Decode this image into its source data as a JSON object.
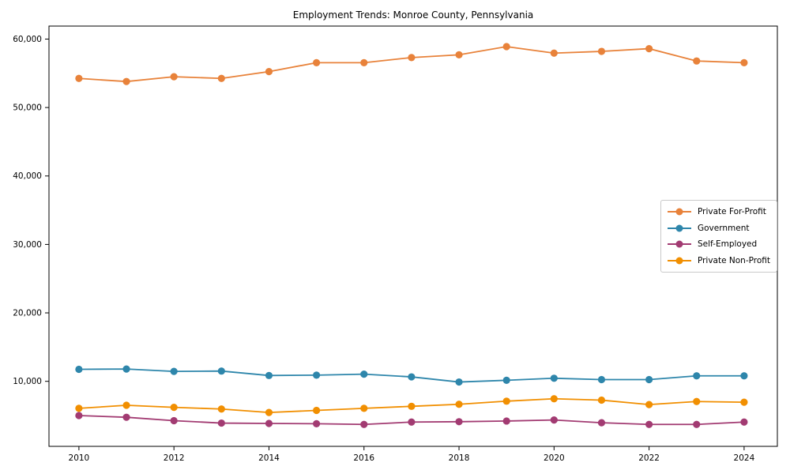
{
  "chart_data": {
    "type": "line",
    "title": "Employment Trends: Monroe County, Pennsylvania",
    "xlabel": "",
    "ylabel": "",
    "x": [
      2010,
      2011,
      2012,
      2013,
      2014,
      2015,
      2016,
      2017,
      2018,
      2019,
      2020,
      2021,
      2022,
      2023,
      2024
    ],
    "series": [
      {
        "name": "Private For-Profit",
        "color": "#E8823A",
        "values": [
          54250,
          53800,
          54500,
          54250,
          55250,
          56550,
          56550,
          57300,
          57700,
          58900,
          57950,
          58200,
          58600,
          56800,
          56550
        ]
      },
      {
        "name": "Government",
        "color": "#2E86AB",
        "values": [
          11750,
          11800,
          11450,
          11500,
          10850,
          10900,
          11050,
          10650,
          9900,
          10150,
          10450,
          10250,
          10250,
          10800,
          10800
        ]
      },
      {
        "name": "Self-Employed",
        "color": "#A23B72",
        "values": [
          5000,
          4750,
          4250,
          3900,
          3850,
          3800,
          3700,
          4050,
          4100,
          4200,
          4350,
          3950,
          3700,
          3700,
          4050
        ]
      },
      {
        "name": "Private Non-Profit",
        "color": "#F18F01",
        "values": [
          6050,
          6500,
          6200,
          5950,
          5450,
          5750,
          6050,
          6350,
          6650,
          7100,
          7450,
          7250,
          6600,
          7050,
          6950
        ]
      }
    ],
    "xticks": [
      2010,
      2012,
      2014,
      2016,
      2018,
      2020,
      2022,
      2024
    ],
    "yticks": [
      10000,
      20000,
      30000,
      40000,
      50000,
      60000
    ],
    "ytick_labels": [
      "10,000",
      "20,000",
      "30,000",
      "40,000",
      "50,000",
      "60,000"
    ],
    "xlim": [
      2009.37,
      2024.7
    ],
    "ylim": [
      500,
      61900
    ],
    "grid": false,
    "legend_position": "center-right",
    "marker": "circle",
    "frame_color": "#000000"
  }
}
